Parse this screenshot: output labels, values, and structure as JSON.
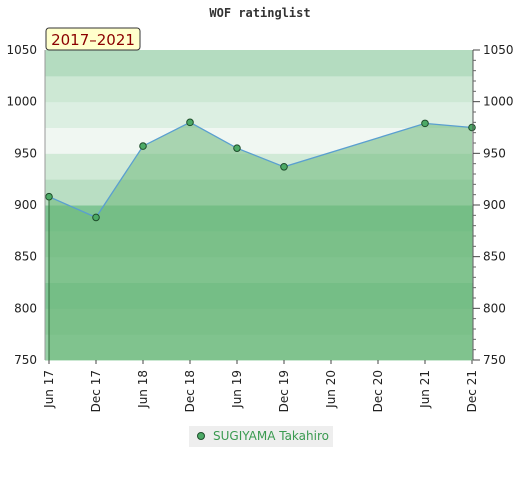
{
  "chart_data": {
    "type": "area",
    "title": "WOF ratinglist",
    "period_label": "2017–2021",
    "xlabel": "",
    "ylabel": "",
    "x_ticks": [
      "Jun 17",
      "Dec 17",
      "Jun 18",
      "Dec 18",
      "Jun 19",
      "Dec 19",
      "Jun 20",
      "Dec 20",
      "Jun 21",
      "Dec 21"
    ],
    "y_ticks": [
      750,
      800,
      850,
      900,
      950,
      1000,
      1050
    ],
    "ylim": [
      750,
      1050
    ],
    "grid": false,
    "legend_position": "bottom-center",
    "series": [
      {
        "name": "SUGIYAMA Takahiro",
        "x": [
          "Jun 17",
          "Dec 17",
          "Jun 18",
          "Dec 18",
          "Jun 19",
          "Dec 19",
          "Jun 21",
          "Dec 21"
        ],
        "values": [
          908,
          888,
          957,
          980,
          955,
          937,
          979,
          975
        ]
      }
    ],
    "colors": {
      "line": "#5a9fd0",
      "marker_fill": "#4caa66",
      "area_fill": "#6db87a",
      "legend_text": "#3a9a50",
      "badge_fill": "#ffffcc",
      "badge_text": "#8b0000"
    }
  }
}
